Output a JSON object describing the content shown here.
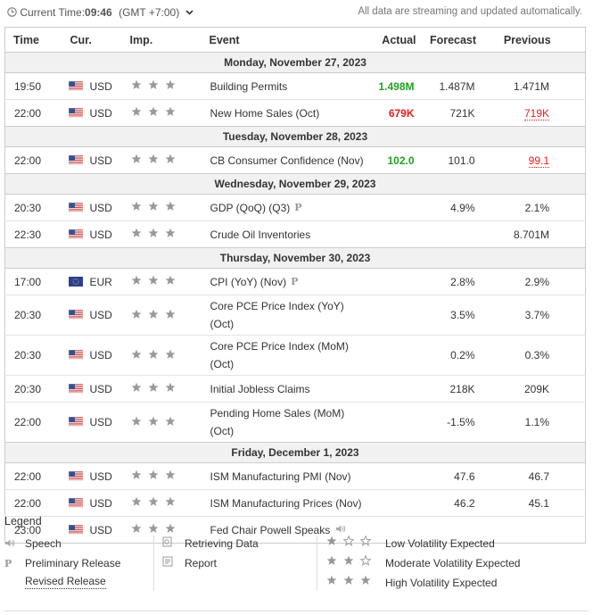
{
  "header": {
    "current_time_label": "Current Time:",
    "current_time": "09:46",
    "timezone": "(GMT +7:00)",
    "notice": "All data are streaming and updated automatically."
  },
  "table": {
    "columns": [
      "Time",
      "Cur.",
      "Imp.",
      "Event",
      "Actual",
      "Forecast",
      "Previous"
    ],
    "days": [
      {
        "date": "Monday, November 27, 2023",
        "rows": [
          {
            "time": "19:50",
            "currency": "USD",
            "importance": 3,
            "event": "Building Permits",
            "actual": "1.498M",
            "actual_status": "better",
            "forecast": "1.487M",
            "previous": "1.471M"
          },
          {
            "time": "22:00",
            "currency": "USD",
            "importance": 3,
            "event": "New Home Sales (Oct)",
            "actual": "679K",
            "actual_status": "worse",
            "forecast": "721K",
            "previous": "719K",
            "previous_revised": true
          }
        ]
      },
      {
        "date": "Tuesday, November 28, 2023",
        "rows": [
          {
            "time": "22:00",
            "currency": "USD",
            "importance": 3,
            "event": "CB Consumer Confidence (Nov)",
            "actual": "102.0",
            "actual_status": "better",
            "forecast": "101.0",
            "previous": "99.1",
            "previous_revised": true
          }
        ]
      },
      {
        "date": "Wednesday, November 29, 2023",
        "rows": [
          {
            "time": "20:30",
            "currency": "USD",
            "importance": 3,
            "event": "GDP (QoQ) (Q3)",
            "icon": "preliminary",
            "forecast": "4.9%",
            "previous": "2.1%"
          },
          {
            "time": "22:30",
            "currency": "USD",
            "importance": 3,
            "event": "Crude Oil Inventories",
            "previous": "8.701M"
          }
        ]
      },
      {
        "date": "Thursday, November 30, 2023",
        "rows": [
          {
            "time": "17:00",
            "currency": "EUR",
            "importance": 3,
            "event": "CPI (YoY) (Nov)",
            "icon": "preliminary",
            "forecast": "2.8%",
            "previous": "2.9%"
          },
          {
            "time": "20:30",
            "currency": "USD",
            "importance": 3,
            "event": "Core PCE Price Index (YoY) (Oct)",
            "forecast": "3.5%",
            "previous": "3.7%"
          },
          {
            "time": "20:30",
            "currency": "USD",
            "importance": 3,
            "event": "Core PCE Price Index (MoM) (Oct)",
            "forecast": "0.2%",
            "previous": "0.3%"
          },
          {
            "time": "20:30",
            "currency": "USD",
            "importance": 3,
            "event": "Initial Jobless Claims",
            "forecast": "218K",
            "previous": "209K"
          },
          {
            "time": "22:00",
            "currency": "USD",
            "importance": 3,
            "event": "Pending Home Sales (MoM) (Oct)",
            "forecast": "-1.5%",
            "previous": "1.1%"
          }
        ]
      },
      {
        "date": "Friday, December 1, 2023",
        "rows": [
          {
            "time": "22:00",
            "currency": "USD",
            "importance": 3,
            "event": "ISM Manufacturing PMI (Nov)",
            "forecast": "47.6",
            "previous": "46.7"
          },
          {
            "time": "22:00",
            "currency": "USD",
            "importance": 3,
            "event": "ISM Manufacturing Prices (Nov)",
            "forecast": "46.2",
            "previous": "45.1"
          },
          {
            "time": "23:00",
            "currency": "USD",
            "importance": 3,
            "event": "Fed Chair Powell Speaks",
            "icon": "speech"
          }
        ]
      }
    ]
  },
  "legend": {
    "title": "Legend",
    "icons": [
      {
        "icon": "speech",
        "label": "Speech"
      },
      {
        "icon": "preliminary",
        "label": "Preliminary Release"
      },
      {
        "icon": "revised",
        "label": "Revised Release"
      }
    ],
    "states": [
      {
        "icon": "retrieving",
        "label": "Retrieving Data"
      },
      {
        "icon": "report",
        "label": "Report"
      }
    ],
    "volatility": [
      {
        "importance": 1,
        "label": "Low Volatility Expected"
      },
      {
        "importance": 2,
        "label": "Moderate Volatility Expected"
      },
      {
        "importance": 3,
        "label": "High Volatility Expected"
      }
    ]
  }
}
